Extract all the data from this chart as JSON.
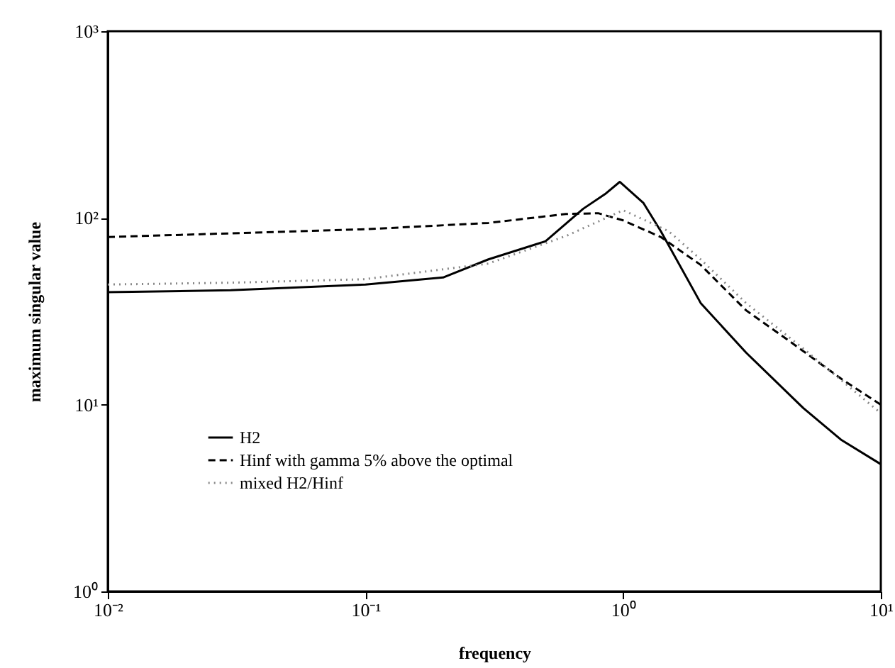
{
  "chart_data": {
    "type": "line",
    "xlabel": "frequency",
    "ylabel": "maximum singular value",
    "log": "xy",
    "xlim": [
      0.01,
      10
    ],
    "ylim": [
      1,
      1000
    ],
    "xticks": [
      {
        "value": 0.01,
        "label": "10⁻²"
      },
      {
        "value": 0.1,
        "label": "10⁻¹"
      },
      {
        "value": 1,
        "label": "10⁰"
      },
      {
        "value": 10,
        "label": "10¹"
      }
    ],
    "yticks": [
      {
        "value": 1,
        "label": "10⁰"
      },
      {
        "value": 10,
        "label": "10¹"
      },
      {
        "value": 100,
        "label": "10²"
      },
      {
        "value": 1000,
        "label": "10³"
      }
    ],
    "grid": false,
    "legend": "bottom left",
    "marker": "none",
    "series": [
      {
        "name": "H2",
        "color": "#000000",
        "line_style": "solid",
        "x": [
          0.01,
          0.03,
          0.1,
          0.2,
          0.3,
          0.5,
          0.7,
          0.85,
          0.97,
          1.2,
          1.4,
          2,
          3,
          5,
          7,
          10
        ],
        "values": [
          40,
          41,
          44,
          48,
          60,
          75,
          112,
          134,
          156,
          120,
          85,
          35,
          19,
          9.6,
          6.5,
          4.8
        ]
      },
      {
        "name": "Hinf with gamma 5% above the optimal",
        "color": "#000000",
        "line_style": "dashed",
        "x": [
          0.01,
          0.1,
          0.3,
          0.6,
          0.8,
          1,
          1.4,
          2,
          3,
          4.4,
          7,
          10
        ],
        "values": [
          79,
          87,
          94,
          105,
          106,
          97,
          79,
          56,
          32,
          22,
          13.8,
          10
        ]
      },
      {
        "name": "mixed H2/Hinf",
        "color": "#888888",
        "line_style": "dotted",
        "x": [
          0.01,
          0.03,
          0.1,
          0.3,
          0.6,
          1,
          1.5,
          2,
          3,
          5,
          10
        ],
        "values": [
          44,
          45,
          47,
          57,
          80,
          110,
          85,
          60,
          35,
          20,
          9
        ]
      }
    ]
  }
}
